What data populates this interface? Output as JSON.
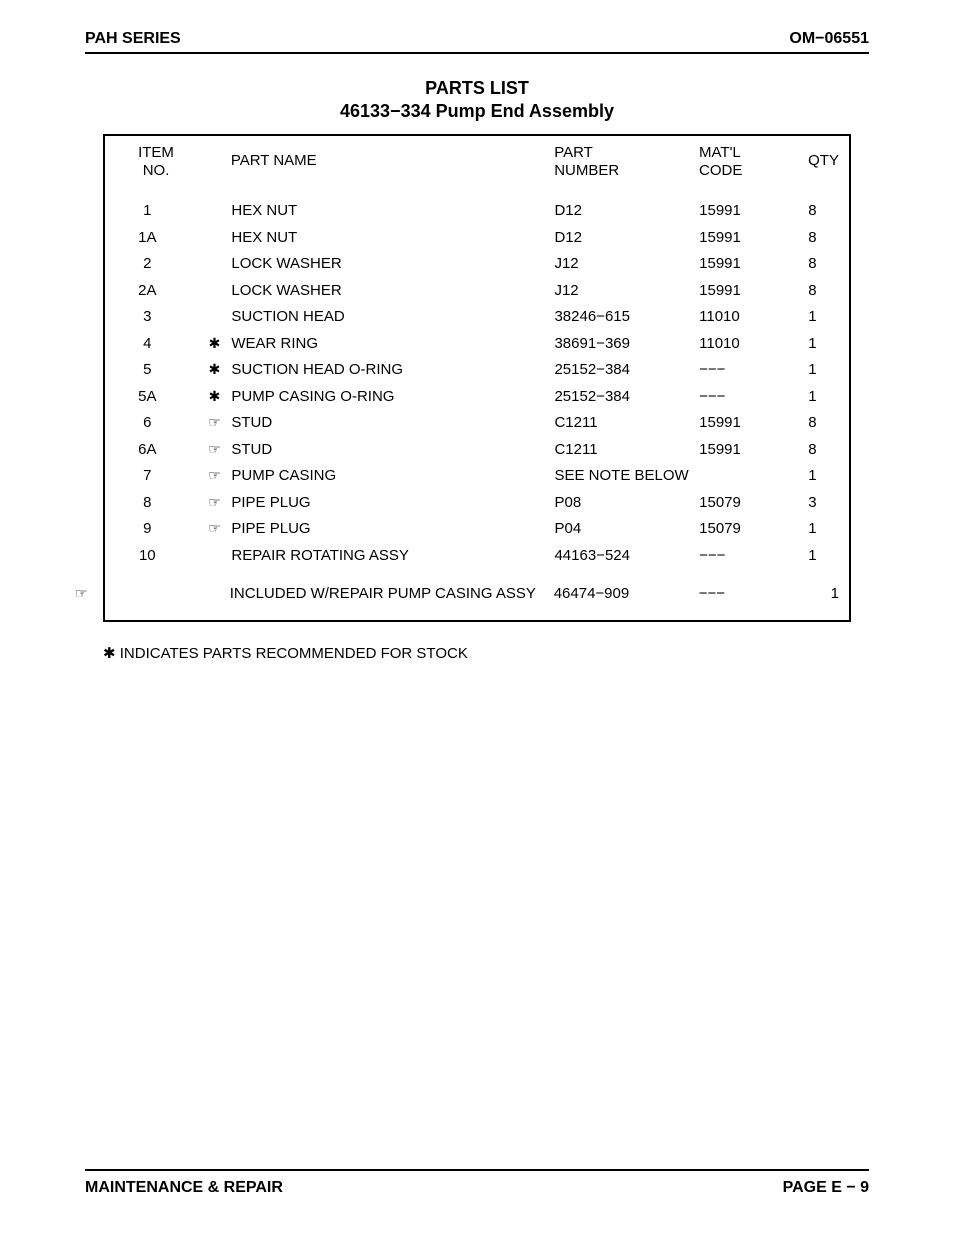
{
  "header": {
    "left": "PAH SERIES",
    "right": "OM−06551"
  },
  "title": {
    "line1": "PARTS LIST",
    "line2": "46133−334 Pump End Assembly"
  },
  "table": {
    "headers": {
      "item_l1": "ITEM",
      "item_l2": "NO.",
      "name": "PART NAME",
      "part_l1": "PART",
      "part_l2": "NUMBER",
      "matl_l1": "MAT'L",
      "matl_l2": "CODE",
      "qty": "QTY"
    },
    "rows": [
      {
        "item": "1",
        "sym": "",
        "name": "HEX NUT",
        "part": "D12",
        "matl": "15991",
        "qty": "8"
      },
      {
        "item": "1A",
        "sym": "",
        "name": "HEX NUT",
        "part": "D12",
        "matl": "15991",
        "qty": "8"
      },
      {
        "item": "2",
        "sym": "",
        "name": "LOCK WASHER",
        "part": "J12",
        "matl": "15991",
        "qty": "8"
      },
      {
        "item": "2A",
        "sym": "",
        "name": "LOCK WASHER",
        "part": "J12",
        "matl": "15991",
        "qty": "8"
      },
      {
        "item": "3",
        "sym": "",
        "name": "SUCTION HEAD",
        "part": "38246−615",
        "matl": "11010",
        "qty": "1"
      },
      {
        "item": "4",
        "sym": "✱",
        "name": "WEAR RING",
        "part": "38691−369",
        "matl": "11010",
        "qty": "1"
      },
      {
        "item": "5",
        "sym": "✱",
        "name": "SUCTION HEAD O-RING",
        "part": "25152−384",
        "matl": "−−−",
        "qty": "1"
      },
      {
        "item": "5A",
        "sym": "✱",
        "name": "PUMP CASING O-RING",
        "part": "25152−384",
        "matl": "−−−",
        "qty": "1"
      },
      {
        "item": "6",
        "sym": "☞",
        "name": "STUD",
        "part": "C1211",
        "matl": "15991",
        "qty": "8"
      },
      {
        "item": "6A",
        "sym": "☞",
        "name": "STUD",
        "part": "C1211",
        "matl": "15991",
        "qty": "8"
      },
      {
        "item": "7",
        "sym": "☞",
        "name": "PUMP CASING",
        "part": "SEE NOTE BELOW",
        "matl": "",
        "qty": "1"
      },
      {
        "item": "8",
        "sym": "☞",
        "name": "PIPE PLUG",
        "part": "P08",
        "matl": "15079",
        "qty": "3"
      },
      {
        "item": "9",
        "sym": "☞",
        "name": "PIPE PLUG",
        "part": "P04",
        "matl": "15079",
        "qty": "1"
      },
      {
        "item": "10",
        "sym": "",
        "name": "REPAIR ROTATING ASSY",
        "part": "44163−524",
        "matl": "−−−",
        "qty": "1"
      }
    ],
    "note_row": {
      "sym": "☞",
      "item": "",
      "name": "INCLUDED W/REPAIR PUMP CASING ASSY",
      "part": "46474−909",
      "matl": "−−−",
      "qty": "1"
    }
  },
  "footnote": "✱ INDICATES PARTS RECOMMENDED FOR STOCK",
  "footer": {
    "left": "MAINTENANCE & REPAIR",
    "right": "PAGE E − 9"
  }
}
